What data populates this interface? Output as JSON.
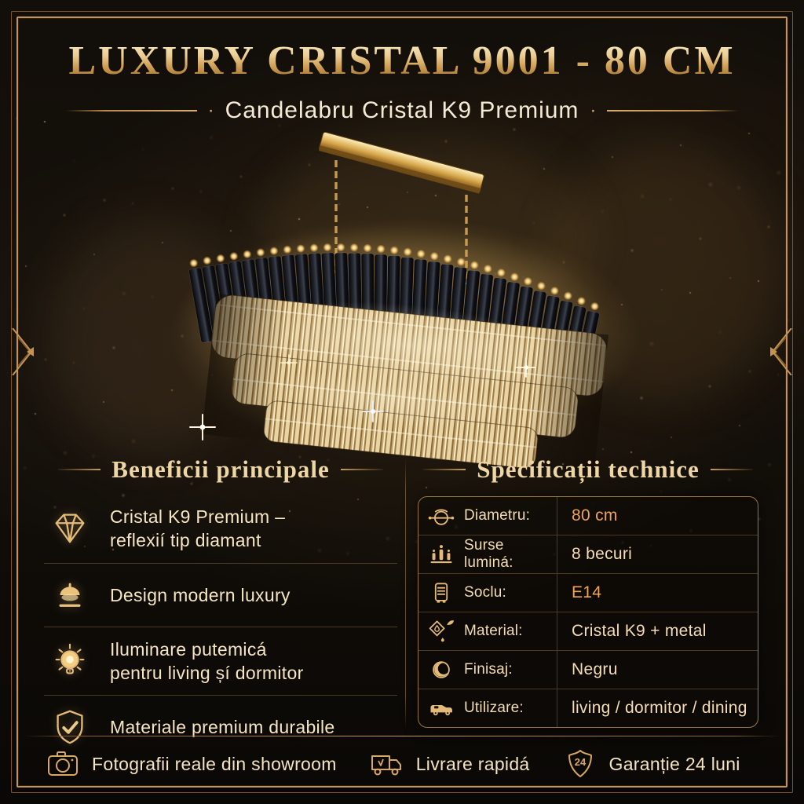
{
  "header": {
    "title": "LUXURY CRISTAL 9001 - 80 CM",
    "subtitle": "Candelabru Cristal K9 Premium",
    "subtitle_dot": "·"
  },
  "benefits": {
    "heading": "Beneficii principale",
    "items": [
      {
        "icon": "diamond-icon",
        "line1": "Cristal K9 Premium –",
        "line2": "reflexií tip diamant"
      },
      {
        "icon": "lamp-icon",
        "line1": "Design modern luxury",
        "line2": ""
      },
      {
        "icon": "bulb-icon",
        "line1": "Iluminare putemicá",
        "line2": "pentru living șí dormitor"
      },
      {
        "icon": "shield-check-icon",
        "line1": "Materiale premium durabile",
        "line2": ""
      }
    ]
  },
  "specs": {
    "heading": "Specificații technice",
    "rows": [
      {
        "icon": "diameter-icon",
        "label": "Diametru:",
        "value": "80 cm"
      },
      {
        "icon": "light-sources-icon",
        "label": "Surse luminá:",
        "value": "8 becuri"
      },
      {
        "icon": "socket-icon",
        "label": "Soclu:",
        "value": "E14"
      },
      {
        "icon": "material-icon",
        "label": "Material:",
        "value": "Cristal K9 + metal"
      },
      {
        "icon": "finish-icon",
        "label": "Finisaj:",
        "value": "Negru"
      },
      {
        "icon": "usage-icon",
        "label": "Utilizare:",
        "value": "living / dormitor / dining"
      }
    ]
  },
  "footer": {
    "items": [
      {
        "icon": "camera-icon",
        "text": "Fotografii reale din showroom"
      },
      {
        "icon": "truck-icon",
        "text": "Livrare rapidá"
      },
      {
        "icon": "warranty-icon",
        "text": "Garanție 24 luni"
      }
    ],
    "warranty_badge": "24"
  },
  "colors": {
    "frame_gold": "#c2945a",
    "title_gold": "#eccf96",
    "text_cream": "#f5e3bd",
    "value_accent": "#f0a455",
    "background": "#120e09"
  }
}
